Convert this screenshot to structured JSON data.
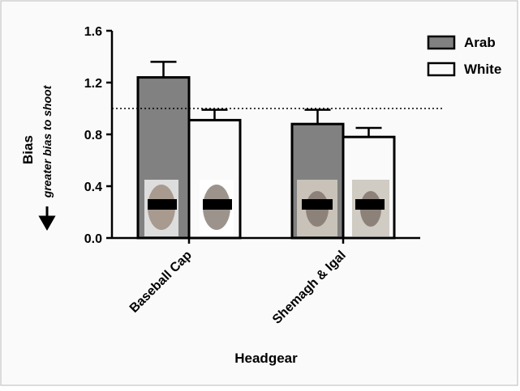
{
  "chart_data": {
    "type": "bar",
    "y_label": "Bias",
    "y_sublabel": "greater bias to shoot",
    "x_label": "Headgear",
    "categories": [
      "Baseball Cap",
      "Shemagh & Igal"
    ],
    "series": [
      {
        "name": "Arab",
        "color": "#6b6b6b",
        "values": [
          1.24,
          0.88
        ],
        "errors": [
          0.12,
          0.11
        ]
      },
      {
        "name": "White",
        "color": "#ffffff",
        "values": [
          0.91,
          0.78
        ],
        "errors": [
          0.08,
          0.07
        ]
      }
    ],
    "ylim": [
      0,
      1.6
    ],
    "yticks": [
      {
        "value": 0,
        "label": "0.0"
      },
      0.4,
      0.8,
      1.2,
      1.6
    ],
    "reference_line": 1.0,
    "legend": "top-right"
  }
}
